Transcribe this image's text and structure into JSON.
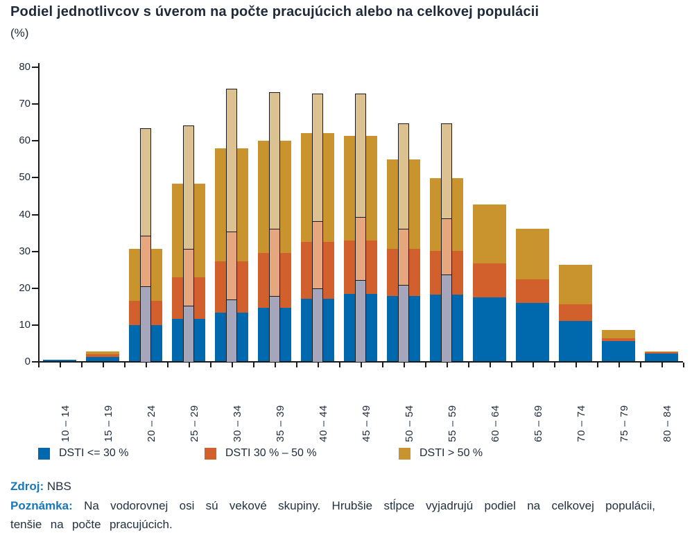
{
  "title": "Podiel jednotlivcov s úverom na počte pracujúcich alebo na celkovej populácii",
  "subtitle": "(%)",
  "legend": {
    "items": [
      {
        "label": "DSTI <= 30 %",
        "color": "#0069ad"
      },
      {
        "label": "DSTI  30 % –  50 %",
        "color": "#d2602c"
      },
      {
        "label": "DSTI  > 50 %",
        "color": "#c9942e"
      }
    ]
  },
  "footer": {
    "source_label": "Zdroj:",
    "source_value": "NBS",
    "note_label": "Poznámka:",
    "note_text": "Na vodorovnej osi sú vekové skupiny. Hrubšie stĺpce vyjadrujú podiel na celkovej populácii, tenšie na počte pracujúcich."
  },
  "colors": {
    "population_stack": [
      "#0069ad",
      "#d2602c",
      "#c9942e"
    ],
    "workers_stack": [
      "#a5a6bb",
      "#e6a77e",
      "#dcc291"
    ],
    "axis": "#1a1a1a",
    "title_text": "#1e2a3a",
    "footer_label_blue": "#1777bd"
  },
  "chart_data": {
    "type": "bar",
    "stacked": true,
    "unit": "%",
    "ylim": [
      0,
      80
    ],
    "y_ticks": [
      0,
      10,
      20,
      30,
      40,
      50,
      60,
      70,
      80
    ],
    "grid": false,
    "legend_position": "bottom",
    "categories": [
      "10 – 14",
      "15 – 19",
      "20 – 24",
      "25 – 29",
      "30 – 34",
      "35 – 39",
      "40 – 44",
      "45 – 49",
      "50 – 54",
      "55 – 59",
      "60 – 64",
      "65 – 69",
      "70 – 74",
      "75 – 79",
      "80 – 84"
    ],
    "bar_groups_note": "wide bars = podiel na celkovej populácii, thin outlined bars = podiel na počte pracujúcich",
    "series": [
      {
        "name": "DSTI <= 30 %",
        "bar": "population",
        "values": [
          0.4,
          1.2,
          9.8,
          11.5,
          13.1,
          14.5,
          17.0,
          18.2,
          17.7,
          18.0,
          17.4,
          15.8,
          11.0,
          5.4,
          2.1
        ]
      },
      {
        "name": "DSTI 30 % – 50 %",
        "bar": "population",
        "values": [
          0.0,
          0.7,
          6.5,
          11.2,
          14.0,
          14.9,
          15.4,
          14.6,
          12.8,
          11.9,
          9.1,
          6.5,
          4.5,
          0.8,
          0.5
        ]
      },
      {
        "name": "DSTI > 50 %",
        "bar": "population",
        "values": [
          0.0,
          0.8,
          14.2,
          25.5,
          30.6,
          30.4,
          29.6,
          28.4,
          24.3,
          19.8,
          16.1,
          13.7,
          10.6,
          2.3,
          0.1
        ]
      },
      {
        "name": "DSTI <= 30 %",
        "bar": "workers",
        "values": [
          null,
          null,
          20.5,
          15.3,
          17.0,
          17.9,
          20.0,
          22.2,
          20.9,
          23.8,
          null,
          null,
          null,
          null,
          null
        ]
      },
      {
        "name": "DSTI 30 % – 50 %",
        "bar": "workers",
        "values": [
          null,
          null,
          13.8,
          15.3,
          18.3,
          18.2,
          18.2,
          17.1,
          15.3,
          15.2,
          null,
          null,
          null,
          null,
          null
        ]
      },
      {
        "name": "DSTI > 50 %",
        "bar": "workers",
        "values": [
          null,
          null,
          28.9,
          33.4,
          38.7,
          37.0,
          34.5,
          33.4,
          28.4,
          25.5,
          null,
          null,
          null,
          null,
          null
        ]
      }
    ]
  }
}
